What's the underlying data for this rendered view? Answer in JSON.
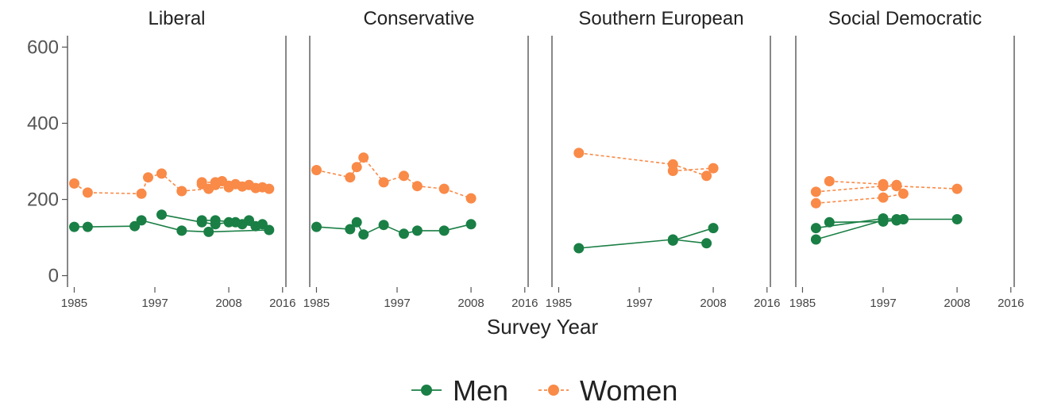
{
  "chart_data": {
    "type": "line",
    "xlabel": "Survey Year",
    "ylabel": "",
    "ylim": [
      -30,
      630
    ],
    "xlim": [
      1984,
      2016.5
    ],
    "yticks": [
      0,
      200,
      400,
      600
    ],
    "xticks": [
      1985,
      1997,
      2008,
      2016
    ],
    "ytick_labels": [
      "0",
      "200",
      "400",
      "600"
    ],
    "xtick_labels": [
      "1985",
      "1997",
      "2008",
      "2016"
    ],
    "grid": false,
    "legend": {
      "placement": "bottom"
    },
    "colors": {
      "Men": "#1a7f45",
      "Women": "#f98a48"
    },
    "legend_entries": [
      {
        "name": "Men",
        "color": "#1a7f45",
        "dashed": false
      },
      {
        "name": "Women",
        "color": "#f98a48",
        "dashed": true
      }
    ],
    "panels": [
      {
        "title": "Liberal",
        "series": [
          {
            "name": "Men",
            "lines": [
              [
                [
                  1985,
                  128
                ],
                [
                  1987,
                  128
                ],
                [
                  1994,
                  130
                ],
                [
                  1995,
                  145
                ],
                [
                  2001,
                  118
                ],
                [
                  2005,
                  115
                ],
                [
                  2014,
                  120
                ]
              ],
              [
                [
                  1998,
                  160
                ],
                [
                  2004,
                  140
                ],
                [
                  2006,
                  135
                ],
                [
                  2008,
                  140
                ],
                [
                  2010,
                  135
                ],
                [
                  2012,
                  130
                ]
              ],
              [
                [
                  2004,
                  145
                ],
                [
                  2006,
                  145
                ],
                [
                  2009,
                  140
                ],
                [
                  2011,
                  145
                ],
                [
                  2013,
                  135
                ]
              ]
            ]
          },
          {
            "name": "Women",
            "lines": [
              [
                [
                  1985,
                  242
                ],
                [
                  1987,
                  218
                ],
                [
                  1995,
                  215
                ],
                [
                  1996,
                  258
                ],
                [
                  1998,
                  268
                ],
                [
                  2001,
                  222
                ],
                [
                  2005,
                  228
                ],
                [
                  2008,
                  232
                ],
                [
                  2014,
                  228
                ]
              ],
              [
                [
                  2004,
                  245
                ],
                [
                  2006,
                  245
                ],
                [
                  2007,
                  248
                ],
                [
                  2009,
                  240
                ],
                [
                  2011,
                  238
                ],
                [
                  2013,
                  232
                ]
              ],
              [
                [
                  2004,
                  240
                ],
                [
                  2006,
                  238
                ],
                [
                  2008,
                  236
                ],
                [
                  2010,
                  234
                ],
                [
                  2012,
                  230
                ]
              ]
            ]
          }
        ]
      },
      {
        "title": "Conservative",
        "series": [
          {
            "name": "Men",
            "lines": [
              [
                [
                  1985,
                  128
                ],
                [
                  1990,
                  122
                ],
                [
                  1991,
                  140
                ],
                [
                  1992,
                  108
                ],
                [
                  1995,
                  133
                ],
                [
                  1998,
                  110
                ],
                [
                  2000,
                  118
                ],
                [
                  2004,
                  118
                ],
                [
                  2008,
                  135
                ]
              ]
            ]
          },
          {
            "name": "Women",
            "lines": [
              [
                [
                  1985,
                  277
                ],
                [
                  1990,
                  258
                ],
                [
                  1991,
                  285
                ],
                [
                  1992,
                  310
                ],
                [
                  1995,
                  245
                ],
                [
                  1998,
                  262
                ],
                [
                  2000,
                  235
                ],
                [
                  2004,
                  228
                ],
                [
                  2008,
                  203
                ]
              ]
            ]
          }
        ]
      },
      {
        "title": "Southern European",
        "series": [
          {
            "name": "Men",
            "lines": [
              [
                [
                  1988,
                  72
                ],
                [
                  2002,
                  95
                ],
                [
                  2007,
                  85
                ]
              ],
              [
                [
                  2002,
                  92
                ],
                [
                  2008,
                  125
                ]
              ]
            ]
          },
          {
            "name": "Women",
            "lines": [
              [
                [
                  1988,
                  322
                ],
                [
                  2002,
                  292
                ],
                [
                  2007,
                  262
                ]
              ],
              [
                [
                  2002,
                  275
                ],
                [
                  2008,
                  282
                ]
              ]
            ]
          }
        ]
      },
      {
        "title": "Social Democratic",
        "series": [
          {
            "name": "Men",
            "lines": [
              [
                [
                  1987,
                  95
                ],
                [
                  1997,
                  145
                ],
                [
                  1999,
                  145
                ],
                [
                  2000,
                  148
                ],
                [
                  2008,
                  148
                ]
              ],
              [
                [
                  1987,
                  125
                ],
                [
                  1997,
                  150
                ],
                [
                  1999,
                  148
                ],
                [
                  2000,
                  148
                ]
              ],
              [
                [
                  1989,
                  140
                ],
                [
                  1997,
                  142
                ],
                [
                  1999,
                  145
                ]
              ]
            ]
          },
          {
            "name": "Women",
            "lines": [
              [
                [
                  1987,
                  220
                ],
                [
                  1997,
                  235
                ],
                [
                  1999,
                  235
                ],
                [
                  2008,
                  228
                ]
              ],
              [
                [
                  1987,
                  190
                ],
                [
                  1997,
                  205
                ],
                [
                  2000,
                  215
                ]
              ],
              [
                [
                  1989,
                  248
                ],
                [
                  1997,
                  240
                ],
                [
                  1999,
                  238
                ]
              ]
            ]
          }
        ]
      }
    ]
  }
}
